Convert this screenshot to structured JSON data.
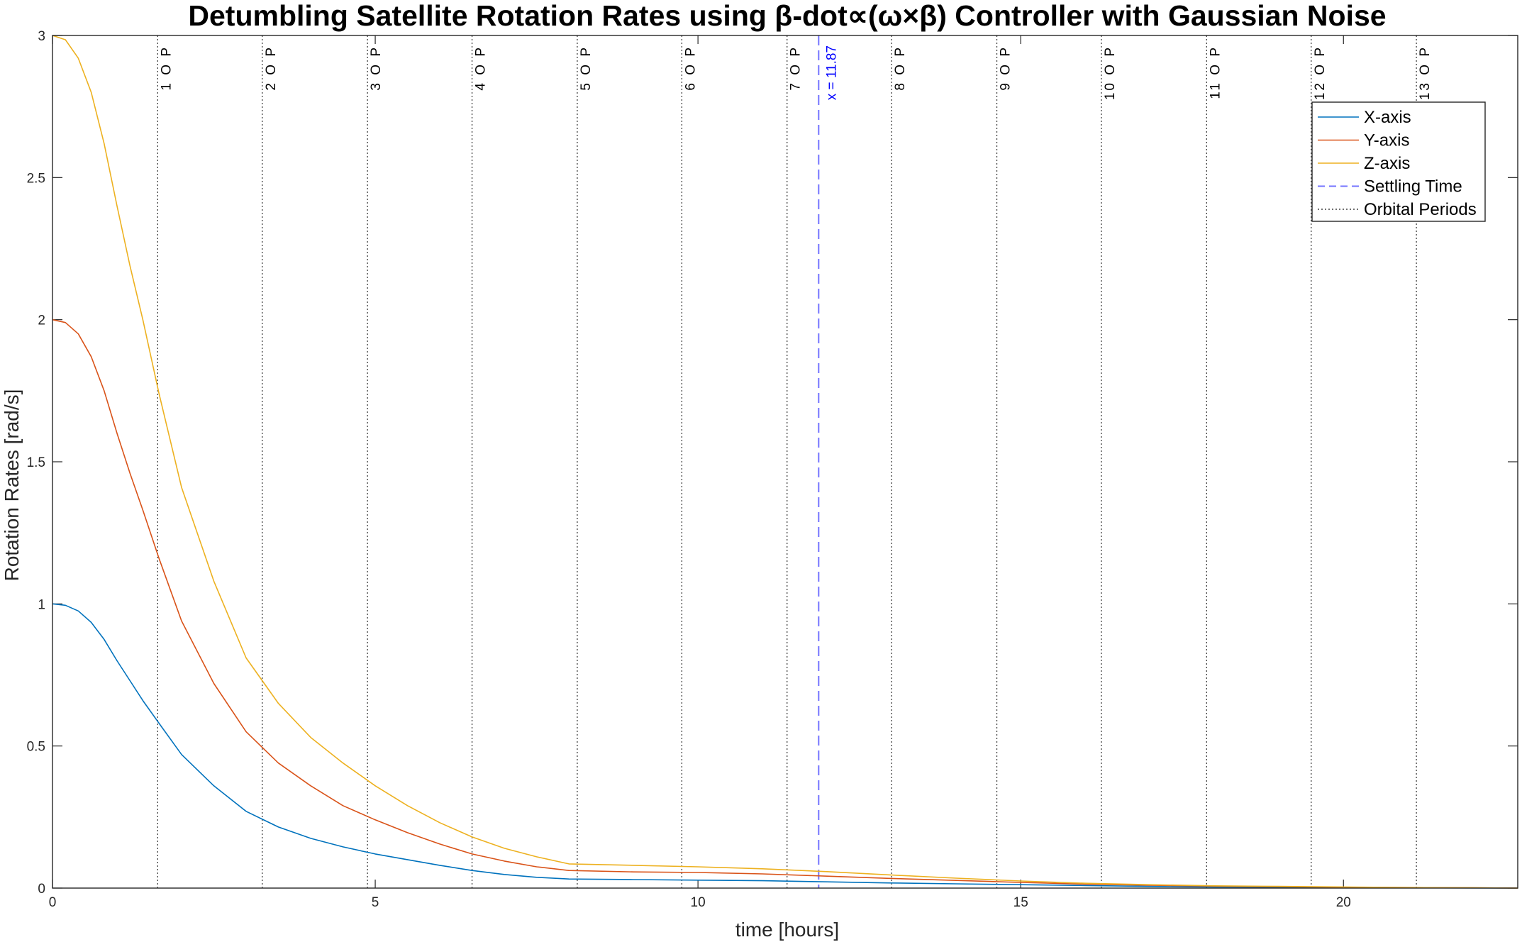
{
  "colors": {
    "x_axis": "#0072BD",
    "y_axis": "#D95319",
    "z_axis": "#EDB120",
    "settling": "#0000FF",
    "orbital": "#404040"
  },
  "chart_data": {
    "type": "line",
    "title": "Detumbling Satellite Rotation Rates using β-dot∝(ω×β) Controller with Gaussian Noise",
    "xlabel": "time [hours]",
    "ylabel": "Rotation Rates  [rad/s]",
    "xlim": [
      0,
      22.7
    ],
    "ylim": [
      0,
      3
    ],
    "xticks": [
      0,
      5,
      10,
      15,
      20
    ],
    "yticks": [
      0,
      0.5,
      1,
      1.5,
      2,
      2.5,
      3
    ],
    "xtick_labels": [
      "0",
      "5",
      "10",
      "15",
      "20"
    ],
    "ytick_labels": [
      "0",
      "0.5",
      "1",
      "1.5",
      "2",
      "2.5",
      "3"
    ],
    "grid": "on",
    "legend_position": "top-right",
    "series": [
      {
        "name": "X-axis",
        "color": "#0072BD",
        "x": [
          0,
          0.2,
          0.4,
          0.6,
          0.8,
          1.0,
          1.2,
          1.4,
          1.65,
          2.0,
          2.5,
          3.0,
          3.5,
          4.0,
          4.5,
          5.0,
          5.5,
          6.0,
          6.5,
          7.0,
          7.5,
          8.0,
          9.0,
          10.0,
          11.0,
          12.0,
          13.0,
          14.0,
          15.0,
          16.0,
          17.0,
          18.0,
          19.0,
          20.0,
          21.0,
          22.0,
          22.7
        ],
        "y": [
          1.0,
          0.995,
          0.975,
          0.935,
          0.875,
          0.8,
          0.73,
          0.66,
          0.58,
          0.47,
          0.36,
          0.27,
          0.215,
          0.175,
          0.145,
          0.12,
          0.1,
          0.08,
          0.062,
          0.048,
          0.038,
          0.032,
          0.03,
          0.028,
          0.026,
          0.022,
          0.018,
          0.015,
          0.012,
          0.009,
          0.006,
          0.004,
          0.003,
          0.002,
          0.001,
          0.0005,
          0.0
        ]
      },
      {
        "name": "Y-axis",
        "color": "#D95319",
        "x": [
          0,
          0.2,
          0.4,
          0.6,
          0.8,
          1.0,
          1.2,
          1.4,
          1.65,
          2.0,
          2.5,
          3.0,
          3.5,
          4.0,
          4.5,
          5.0,
          5.5,
          6.0,
          6.5,
          7.0,
          7.5,
          8.0,
          9.0,
          10.0,
          11.0,
          12.0,
          13.0,
          14.0,
          15.0,
          16.0,
          17.0,
          18.0,
          19.0,
          20.0,
          21.0,
          22.0,
          22.7
        ],
        "y": [
          2.0,
          1.99,
          1.95,
          1.87,
          1.75,
          1.6,
          1.46,
          1.33,
          1.16,
          0.94,
          0.72,
          0.55,
          0.44,
          0.36,
          0.29,
          0.24,
          0.195,
          0.155,
          0.12,
          0.095,
          0.075,
          0.062,
          0.057,
          0.055,
          0.05,
          0.042,
          0.034,
          0.027,
          0.02,
          0.014,
          0.01,
          0.007,
          0.005,
          0.003,
          0.002,
          0.001,
          0.0
        ]
      },
      {
        "name": "Z-axis",
        "color": "#EDB120",
        "x": [
          0,
          0.2,
          0.4,
          0.6,
          0.8,
          1.0,
          1.2,
          1.4,
          1.65,
          2.0,
          2.5,
          3.0,
          3.5,
          4.0,
          4.5,
          5.0,
          5.5,
          6.0,
          6.5,
          7.0,
          7.5,
          8.0,
          9.0,
          10.0,
          11.0,
          12.0,
          13.0,
          14.0,
          15.0,
          16.0,
          17.0,
          18.0,
          19.0,
          20.0,
          21.0,
          22.0,
          22.7
        ],
        "y": [
          3.0,
          2.985,
          2.92,
          2.8,
          2.62,
          2.4,
          2.19,
          2.0,
          1.74,
          1.41,
          1.08,
          0.81,
          0.65,
          0.53,
          0.44,
          0.36,
          0.29,
          0.23,
          0.18,
          0.14,
          0.11,
          0.085,
          0.08,
          0.075,
          0.068,
          0.058,
          0.046,
          0.035,
          0.025,
          0.017,
          0.012,
          0.008,
          0.006,
          0.004,
          0.002,
          0.001,
          0.0
        ]
      }
    ],
    "settling_time": {
      "name": "Settling Time",
      "x": 11.87,
      "label": "x = 11.87"
    },
    "orbital_periods": {
      "name": "Orbital Periods",
      "x": [
        1.63,
        3.25,
        4.88,
        6.5,
        8.13,
        9.75,
        11.38,
        13.0,
        14.63,
        16.25,
        17.88,
        19.5,
        21.13
      ],
      "labels": [
        "1 O P",
        "2 O P",
        "3 O P",
        "4 O P",
        "5 O P",
        "6 O P",
        "7 O P",
        "8 O P",
        "9 O P",
        "10 O P",
        "11 O P",
        "12 O P",
        "13 O P"
      ]
    },
    "legend": [
      "X-axis",
      "Y-axis",
      "Z-axis",
      "Settling Time",
      "Orbital Periods"
    ]
  }
}
